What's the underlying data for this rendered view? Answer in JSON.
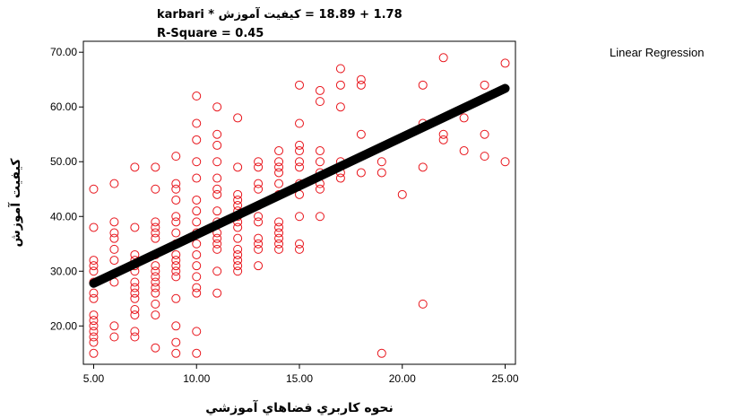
{
  "chart_data": {
    "type": "scatter",
    "title": "1.78 + 18.89 = کيفيت آموزش * karbari",
    "subtitle": "R-Square = 0.45",
    "xlabel": "نحوه کاربري فضاهاي آموزشي",
    "ylabel": "کيفيت آموزش",
    "xlim": [
      4.5,
      25.5
    ],
    "ylim": [
      13.0,
      72.0
    ],
    "x_ticks": [
      5,
      10,
      15,
      20,
      25
    ],
    "x_tick_labels": [
      "5.00",
      "10.00",
      "15.00",
      "20.00",
      "25.00"
    ],
    "y_ticks": [
      20,
      30,
      40,
      50,
      60,
      70
    ],
    "y_tick_labels": [
      "20.00",
      "30.00",
      "40.00",
      "50.00",
      "60.00",
      "70.00"
    ],
    "grid": false,
    "legend": {
      "position": "top-right",
      "entries": [
        "Linear Regression"
      ]
    },
    "point_color": "#e8141b",
    "line_color": "#000000",
    "regression": {
      "intercept": 18.89,
      "slope": 1.78,
      "x_range": [
        5,
        25
      ]
    },
    "series": [
      {
        "x": [
          5,
          5,
          5,
          5,
          5,
          5,
          5,
          5,
          5,
          5,
          5,
          5,
          5,
          5,
          5,
          6,
          6,
          6,
          6,
          6,
          6,
          6,
          6,
          6,
          7,
          7,
          7,
          7,
          7,
          7,
          7,
          7,
          7,
          7,
          7,
          7,
          7,
          7,
          8,
          8,
          8,
          8,
          8,
          8,
          8,
          8,
          8,
          8,
          8,
          8,
          8,
          8,
          8,
          8,
          9,
          9,
          9,
          9,
          9,
          9,
          9,
          9,
          9,
          9,
          9,
          9,
          9,
          9,
          9,
          9,
          9,
          10,
          10,
          10,
          10,
          10,
          10,
          10,
          10,
          10,
          10,
          10,
          10,
          10,
          10,
          10,
          10,
          10,
          11,
          11,
          11,
          11,
          11,
          11,
          11,
          11,
          11,
          11,
          11,
          11,
          11,
          11,
          11,
          12,
          12,
          12,
          12,
          12,
          12,
          12,
          12,
          12,
          12,
          12,
          12,
          12,
          12,
          12,
          13,
          13,
          13,
          13,
          13,
          13,
          13,
          13,
          13,
          13,
          13,
          14,
          14,
          14,
          14,
          14,
          14,
          14,
          14,
          14,
          14,
          14,
          14,
          15,
          15,
          15,
          15,
          15,
          15,
          15,
          15,
          15,
          15,
          15,
          16,
          16,
          16,
          16,
          16,
          16,
          16,
          16,
          17,
          17,
          17,
          17,
          17,
          17,
          18,
          18,
          18,
          18,
          19,
          19,
          19,
          20,
          21,
          21,
          21,
          21,
          22,
          22,
          22,
          23,
          23,
          24,
          24,
          24,
          25,
          25
        ],
        "y": [
          45,
          38,
          32,
          31,
          30,
          28,
          26,
          25,
          22,
          21,
          20,
          19,
          18,
          17,
          15,
          46,
          39,
          37,
          36,
          34,
          32,
          28,
          20,
          18,
          49,
          38,
          33,
          32,
          31,
          30,
          28,
          27,
          26,
          25,
          23,
          22,
          19,
          18,
          49,
          45,
          39,
          38,
          37,
          36,
          33,
          31,
          30,
          29,
          28,
          27,
          26,
          24,
          22,
          16,
          51,
          46,
          45,
          43,
          40,
          39,
          37,
          35,
          33,
          32,
          31,
          30,
          29,
          25,
          20,
          17,
          15,
          62,
          57,
          54,
          50,
          47,
          43,
          41,
          39,
          37,
          35,
          33,
          31,
          29,
          27,
          26,
          19,
          15,
          60,
          55,
          53,
          50,
          47,
          45,
          44,
          41,
          39,
          37,
          36,
          35,
          34,
          30,
          26,
          58,
          49,
          44,
          43,
          42,
          41,
          40,
          39,
          38,
          36,
          34,
          33,
          32,
          31,
          30,
          50,
          49,
          46,
          45,
          42,
          40,
          39,
          36,
          35,
          34,
          31,
          52,
          50,
          49,
          48,
          46,
          44,
          39,
          38,
          37,
          36,
          35,
          34,
          64,
          57,
          53,
          52,
          50,
          49,
          46,
          44,
          40,
          35,
          34,
          63,
          61,
          52,
          50,
          48,
          46,
          45,
          40,
          67,
          64,
          60,
          50,
          48,
          47,
          65,
          64,
          55,
          48,
          50,
          48,
          15,
          44,
          64,
          57,
          49,
          24,
          69,
          54,
          55,
          58,
          52,
          64,
          55,
          51,
          68,
          50
        ]
      }
    ]
  }
}
